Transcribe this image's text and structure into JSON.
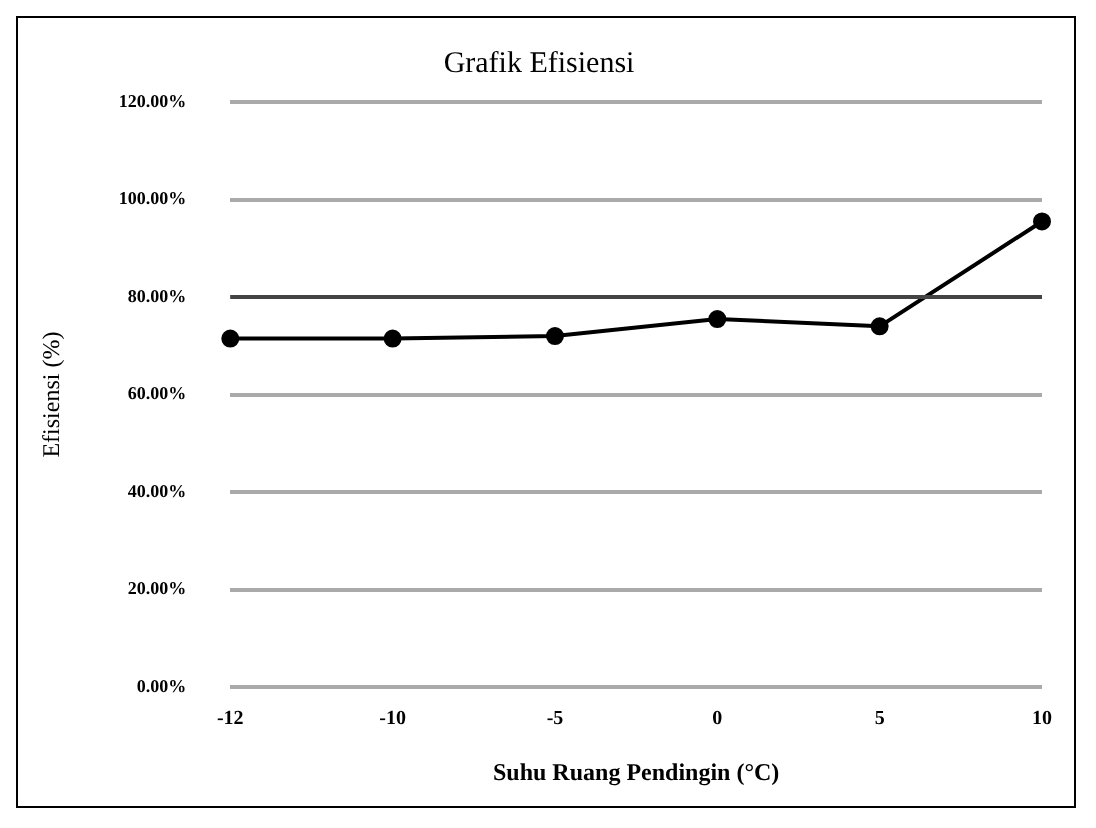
{
  "chart_data": {
    "type": "line",
    "title": "Grafik Efisiensi",
    "xlabel": "Suhu Ruang Pendingin (°C)",
    "ylabel": "Efisiensi (%)",
    "categories": [
      "-12",
      "-10",
      "-5",
      "0",
      "5",
      "10"
    ],
    "series": [
      {
        "color": "#000000",
        "values": [
          71.5,
          71.5,
          72,
          75.5,
          74,
          95.5
        ]
      }
    ],
    "ylim": [
      0,
      120
    ],
    "yticks": [
      {
        "value": 0,
        "label": "0.00%"
      },
      {
        "value": 20,
        "label": "20.00%"
      },
      {
        "value": 40,
        "label": "40.00%"
      },
      {
        "value": 60,
        "label": "60.00%"
      },
      {
        "value": 80,
        "label": "80.00%"
      },
      {
        "value": 100,
        "label": "100.00%"
      },
      {
        "value": 120,
        "label": "120.00%"
      }
    ],
    "ref_lines": [
      {
        "axis": "y",
        "value": 80,
        "color": "#444444"
      }
    ],
    "grid": "y",
    "legend": false,
    "marker": "circle",
    "line_style": "solid"
  }
}
